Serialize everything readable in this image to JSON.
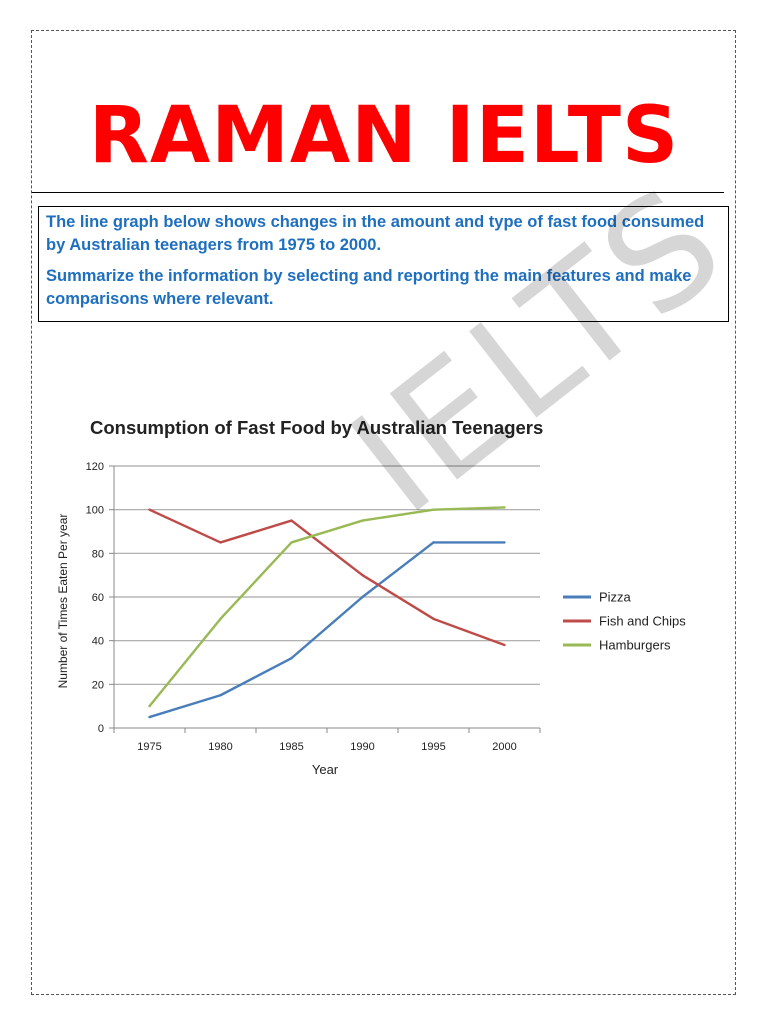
{
  "header": {
    "brand": "RAMAN IELTS"
  },
  "task": {
    "prompt_line1": "The line graph below shows changes in the amount and type of fast food consumed by Australian teenagers from 1975 to 2000.",
    "prompt_line2": "Summarize the information by selecting and reporting the main features and make comparisons where relevant."
  },
  "watermark": {
    "text": "IELTS"
  },
  "colors": {
    "brand": "#ff0000",
    "prompt": "#1f6fbf",
    "pizza": "#4a7ebb",
    "fish": "#be4b48",
    "hamburgers": "#98b954",
    "grid": "#a6a6a6"
  },
  "chart_data": {
    "type": "line",
    "title": "Consumption of Fast Food by Australian Teenagers",
    "xlabel": "Year",
    "ylabel": "Number of Times Eaten Per year",
    "x": [
      "1975",
      "1980",
      "1985",
      "1990",
      "1995",
      "2000"
    ],
    "ylim": [
      0,
      120
    ],
    "yticks": [
      0,
      20,
      40,
      60,
      80,
      100,
      120
    ],
    "grid": true,
    "legend_position": "right",
    "series": [
      {
        "name": "Pizza",
        "color": "#4a7ebb",
        "values": [
          5,
          15,
          32,
          60,
          85,
          85
        ]
      },
      {
        "name": "Fish and Chips",
        "color": "#be4b48",
        "values": [
          100,
          85,
          95,
          70,
          50,
          38
        ]
      },
      {
        "name": "Hamburgers",
        "color": "#98b954",
        "values": [
          10,
          50,
          85,
          95,
          100,
          101
        ]
      }
    ]
  }
}
